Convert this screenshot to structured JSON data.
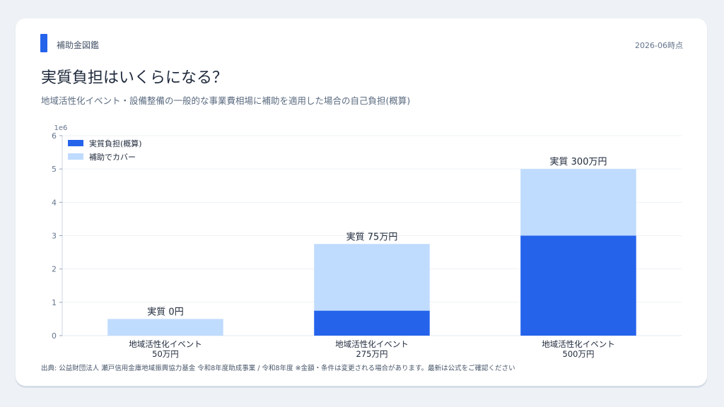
{
  "header": {
    "brand": "補助金図鑑",
    "as_of": "2026-06時点",
    "title": "実質負担はいくらになる？",
    "subtitle": "地域活性化イベント・設備整備の一般的な事業費相場に補助を適用した場合の自己負担(概算)"
  },
  "colors": {
    "accent": "#2563eb",
    "self_burden": "#2563eb",
    "subsidy": "#bfdbfe"
  },
  "chart_data": {
    "type": "bar",
    "stacked": true,
    "categories": [
      "地域活性化イベント\n50万円",
      "地域活性化イベント\n275万円",
      "地域活性化イベント\n500万円"
    ],
    "series": [
      {
        "name": "実質負担(概算)",
        "values": [
          0,
          750000,
          3000000
        ],
        "color": "#2563eb"
      },
      {
        "name": "補助でカバー",
        "values": [
          500000,
          2000000,
          2000000
        ],
        "color": "#bfdbfe"
      }
    ],
    "bar_labels": [
      "実質 0円",
      "実質 75万円",
      "実質 300万円"
    ],
    "y_ticks": [
      0,
      1,
      2,
      3,
      4,
      5,
      6
    ],
    "y_scale_label": "1e6",
    "ylim": [
      0,
      6000000
    ],
    "grid": true,
    "legend": "top-left"
  },
  "footer": {
    "source": "出典: 公益財団法人 瀬戸信用金庫地域振興協力基金 令和8年度助成事業 / 令和8年度 ※金額・条件は変更される場合があります。最新は公式をご確認ください"
  }
}
